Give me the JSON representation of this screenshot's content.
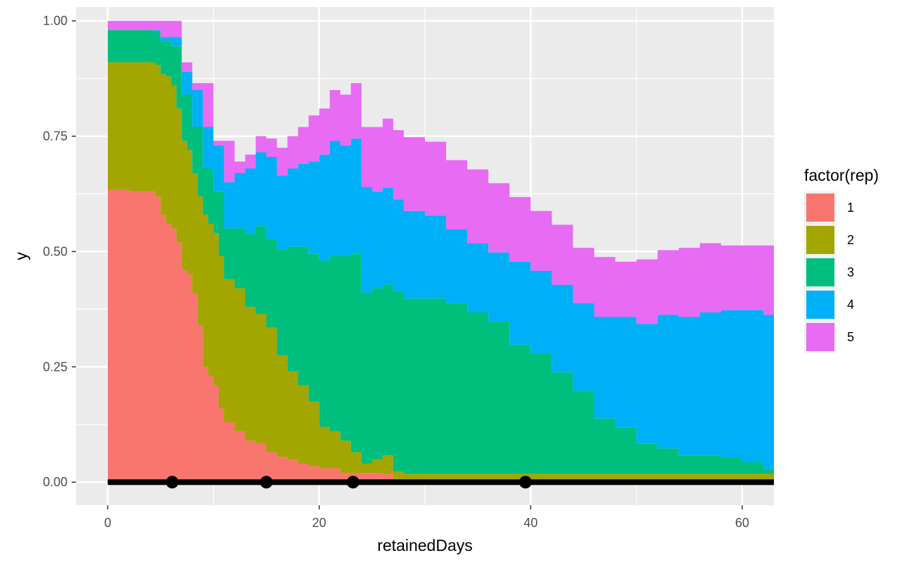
{
  "chart_data": {
    "type": "area",
    "stacked": true,
    "step": true,
    "xlabel": "retainedDays",
    "ylabel": "y",
    "xlim": [
      -3,
      63
    ],
    "ylim": [
      -0.05,
      1.03
    ],
    "x_ticks": [
      0,
      20,
      40,
      60
    ],
    "x_tick_labels": [
      "0",
      "20",
      "40",
      "60"
    ],
    "y_ticks": [
      0,
      0.25,
      0.5,
      0.75,
      1.0
    ],
    "y_tick_labels": [
      "0.00",
      "0.25",
      "0.50",
      "0.75",
      "1.00"
    ],
    "grid": true,
    "legend": {
      "title": "factor(rep)",
      "position": "right"
    },
    "series": [
      {
        "name": "1",
        "color": "#F8766D",
        "points": [
          [
            0,
            0.635
          ],
          [
            2,
            0.63
          ],
          [
            4.5,
            0.62
          ],
          [
            5,
            0.58
          ],
          [
            5.5,
            0.56
          ],
          [
            6,
            0.55
          ],
          [
            6.5,
            0.52
          ],
          [
            7,
            0.46
          ],
          [
            7.5,
            0.45
          ],
          [
            8,
            0.41
          ],
          [
            8.5,
            0.34
          ],
          [
            9,
            0.25
          ],
          [
            9.5,
            0.23
          ],
          [
            10,
            0.21
          ],
          [
            10.5,
            0.16
          ],
          [
            11,
            0.13
          ],
          [
            12,
            0.11
          ],
          [
            13,
            0.09
          ],
          [
            14,
            0.085
          ],
          [
            15,
            0.065
          ],
          [
            16,
            0.055
          ],
          [
            17,
            0.05
          ],
          [
            18,
            0.04
          ],
          [
            19,
            0.035
          ],
          [
            20,
            0.03
          ],
          [
            22,
            0.02
          ],
          [
            24,
            0.02
          ],
          [
            26,
            0.018
          ],
          [
            27,
            0.003
          ],
          [
            63,
            0.003
          ]
        ]
      },
      {
        "name": "2",
        "color": "#A3A500",
        "points": [
          [
            0,
            0.275
          ],
          [
            3,
            0.28
          ],
          [
            4.5,
            0.285
          ],
          [
            5,
            0.305
          ],
          [
            5.5,
            0.32
          ],
          [
            6,
            0.31
          ],
          [
            6.5,
            0.29
          ],
          [
            7,
            0.28
          ],
          [
            7.5,
            0.27
          ],
          [
            8,
            0.26
          ],
          [
            8.5,
            0.28
          ],
          [
            9,
            0.33
          ],
          [
            9.5,
            0.33
          ],
          [
            10,
            0.33
          ],
          [
            10.5,
            0.33
          ],
          [
            11,
            0.31
          ],
          [
            12,
            0.31
          ],
          [
            13,
            0.29
          ],
          [
            14,
            0.28
          ],
          [
            15,
            0.27
          ],
          [
            16,
            0.22
          ],
          [
            17,
            0.19
          ],
          [
            18,
            0.17
          ],
          [
            19,
            0.14
          ],
          [
            20,
            0.09
          ],
          [
            21,
            0.08
          ],
          [
            22,
            0.07
          ],
          [
            23,
            0.045
          ],
          [
            24,
            0.02
          ],
          [
            25,
            0.03
          ],
          [
            26,
            0.04
          ],
          [
            27,
            0.02
          ],
          [
            28,
            0.015
          ],
          [
            30,
            0.015
          ],
          [
            33,
            0.015
          ],
          [
            63,
            0.015
          ]
        ]
      },
      {
        "name": "3",
        "color": "#00BF7D",
        "points": [
          [
            0,
            0.07
          ],
          [
            2,
            0.07
          ],
          [
            4.5,
            0.07
          ],
          [
            5,
            0.07
          ],
          [
            5.5,
            0.075
          ],
          [
            6,
            0.085
          ],
          [
            7,
            0.1
          ],
          [
            8,
            0.1
          ],
          [
            9,
            0.1
          ],
          [
            10,
            0.09
          ],
          [
            11,
            0.11
          ],
          [
            12,
            0.13
          ],
          [
            13,
            0.16
          ],
          [
            14,
            0.19
          ],
          [
            15,
            0.19
          ],
          [
            16,
            0.23
          ],
          [
            17,
            0.27
          ],
          [
            18,
            0.3
          ],
          [
            19,
            0.32
          ],
          [
            20,
            0.36
          ],
          [
            21,
            0.38
          ],
          [
            22,
            0.4
          ],
          [
            23,
            0.43
          ],
          [
            24,
            0.37
          ],
          [
            25,
            0.37
          ],
          [
            26,
            0.37
          ],
          [
            27,
            0.39
          ],
          [
            28,
            0.38
          ],
          [
            30,
            0.38
          ],
          [
            32,
            0.37
          ],
          [
            34,
            0.35
          ],
          [
            36,
            0.33
          ],
          [
            38,
            0.28
          ],
          [
            40,
            0.26
          ],
          [
            42,
            0.22
          ],
          [
            44,
            0.18
          ],
          [
            46,
            0.12
          ],
          [
            48,
            0.1
          ],
          [
            50,
            0.065
          ],
          [
            52,
            0.055
          ],
          [
            54,
            0.04
          ],
          [
            56,
            0.04
          ],
          [
            58,
            0.035
          ],
          [
            60,
            0.025
          ],
          [
            62,
            0.01
          ],
          [
            63,
            0.01
          ]
        ]
      },
      {
        "name": "4",
        "color": "#00B0F6",
        "points": [
          [
            0,
            0
          ],
          [
            2,
            0
          ],
          [
            4,
            0
          ],
          [
            4.5,
            0.005
          ],
          [
            5,
            0.01
          ],
          [
            6,
            0.02
          ],
          [
            7,
            0.05
          ],
          [
            8,
            0.08
          ],
          [
            9,
            0.09
          ],
          [
            10,
            0.1
          ],
          [
            11,
            0.1
          ],
          [
            12,
            0.12
          ],
          [
            13,
            0.14
          ],
          [
            14,
            0.16
          ],
          [
            15,
            0.18
          ],
          [
            16,
            0.16
          ],
          [
            17,
            0.17
          ],
          [
            18,
            0.18
          ],
          [
            19,
            0.2
          ],
          [
            20,
            0.23
          ],
          [
            21,
            0.25
          ],
          [
            22,
            0.24
          ],
          [
            23,
            0.25
          ],
          [
            24,
            0.23
          ],
          [
            25,
            0.21
          ],
          [
            26,
            0.21
          ],
          [
            27,
            0.2
          ],
          [
            28,
            0.19
          ],
          [
            30,
            0.18
          ],
          [
            32,
            0.16
          ],
          [
            34,
            0.15
          ],
          [
            36,
            0.15
          ],
          [
            38,
            0.18
          ],
          [
            40,
            0.18
          ],
          [
            42,
            0.19
          ],
          [
            44,
            0.19
          ],
          [
            46,
            0.22
          ],
          [
            48,
            0.24
          ],
          [
            50,
            0.26
          ],
          [
            52,
            0.29
          ],
          [
            54,
            0.3
          ],
          [
            56,
            0.31
          ],
          [
            58,
            0.32
          ],
          [
            60,
            0.33
          ],
          [
            62,
            0.335
          ],
          [
            63,
            0.335
          ]
        ]
      },
      {
        "name": "5",
        "color": "#E76BF3",
        "points": [
          [
            0,
            0.02
          ],
          [
            4,
            0.02
          ],
          [
            7,
            0.02
          ],
          [
            8,
            0.015
          ],
          [
            10,
            0.01
          ],
          [
            12,
            0.025
          ],
          [
            13,
            0.03
          ],
          [
            14,
            0.035
          ],
          [
            15,
            0.04
          ],
          [
            16,
            0.06
          ],
          [
            17,
            0.07
          ],
          [
            18,
            0.08
          ],
          [
            19,
            0.1
          ],
          [
            20,
            0.1
          ],
          [
            21,
            0.11
          ],
          [
            22,
            0.11
          ],
          [
            23,
            0.12
          ],
          [
            24,
            0.13
          ],
          [
            25,
            0.14
          ],
          [
            26,
            0.15
          ],
          [
            27,
            0.15
          ],
          [
            28,
            0.16
          ],
          [
            30,
            0.16
          ],
          [
            32,
            0.15
          ],
          [
            34,
            0.16
          ],
          [
            36,
            0.15
          ],
          [
            38,
            0.14
          ],
          [
            40,
            0.13
          ],
          [
            42,
            0.13
          ],
          [
            44,
            0.12
          ],
          [
            46,
            0.13
          ],
          [
            48,
            0.12
          ],
          [
            50,
            0.14
          ],
          [
            52,
            0.14
          ],
          [
            54,
            0.15
          ],
          [
            56,
            0.15
          ],
          [
            58,
            0.14
          ],
          [
            60,
            0.14
          ],
          [
            62,
            0.15
          ],
          [
            63,
            0.15
          ]
        ]
      }
    ],
    "baseline": {
      "y": 0,
      "color": "#000000"
    },
    "points": [
      {
        "x": 6.1,
        "y": 0
      },
      {
        "x": 15,
        "y": 0
      },
      {
        "x": 23.2,
        "y": 0
      },
      {
        "x": 39.5,
        "y": 0
      }
    ]
  }
}
